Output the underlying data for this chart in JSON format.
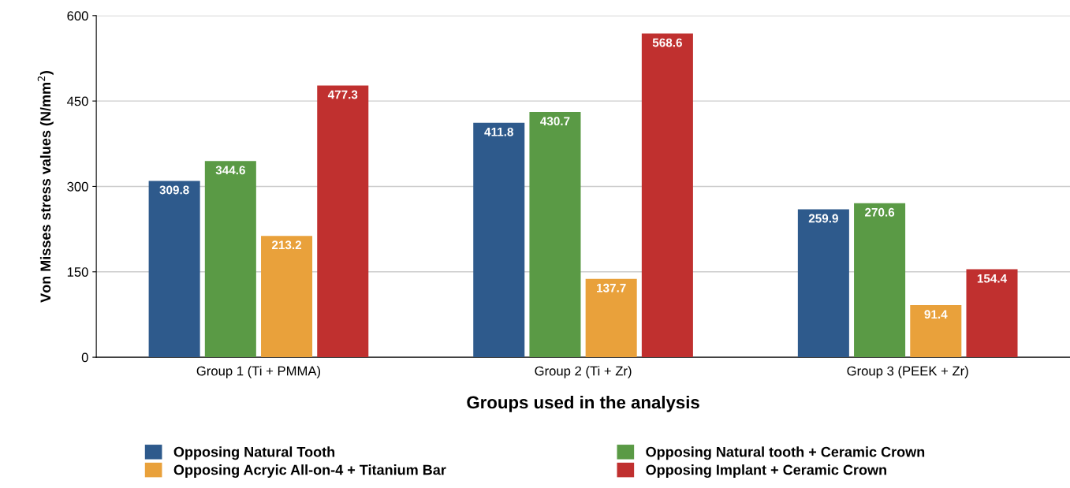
{
  "chart_data": {
    "type": "bar",
    "xlabel": "Groups used in the analysis",
    "ylabel": "Von Misses stress values (N/mm$^{2}$)",
    "categories": [
      "Group 1 (Ti + PMMA)",
      "Group 2 (Ti + Zr)",
      "Group 3 (PEEK + Zr)"
    ],
    "series": [
      {
        "name": "Opposing Natural Tooth",
        "color": "#2e5a8c",
        "values": [
          309.8,
          411.8,
          259.9
        ]
      },
      {
        "name": "Opposing Natural tooth + Ceramic Crown",
        "color": "#5a9a45",
        "values": [
          344.6,
          430.7,
          270.6
        ]
      },
      {
        "name": "Opposing Acryic All-on-4 + Titanium Bar",
        "color": "#e9a13b",
        "values": [
          213.2,
          137.7,
          91.4
        ]
      },
      {
        "name": "Opposing Implant + Ceramic Crown",
        "color": "#c0302f",
        "values": [
          477.3,
          568.6,
          154.4
        ]
      }
    ],
    "ylim": [
      0,
      600
    ],
    "yticks": [
      0,
      150,
      300,
      450,
      600
    ],
    "grid": "y",
    "legend": "bottom",
    "data_labels": true
  }
}
